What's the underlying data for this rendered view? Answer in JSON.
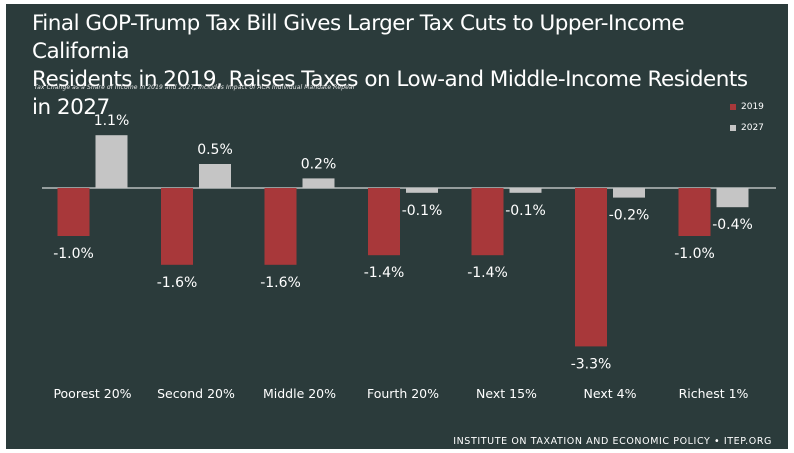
{
  "title_line1": "Final GOP-Trump Tax Bill Gives Larger Tax Cuts to Upper-Income California",
  "title_line2": "Residents in 2019, Raises Taxes on Low-and Middle-Income Residents in 2027",
  "subtitle": "Tax Change as a Share of Income in 2019 and 2027, Includes Impact of ACA Individual Mandate Repeal",
  "footer": "INSTITUTE ON TAXATION AND ECONOMIC POLICY • ITEP.ORG",
  "colors": {
    "background": "#2b3b3b",
    "s2019": "#a8383a",
    "s2027": "#c5c5c5"
  },
  "chart_data": {
    "type": "bar",
    "title": "Final GOP-Trump Tax Bill Gives Larger Tax Cuts to Upper-Income California Residents in 2019, Raises Taxes on Low-and Middle-Income Residents in 2027",
    "subtitle": "Tax Change as a Share of Income in 2019 and 2027, Includes Impact of ACA Individual Mandate Repeal",
    "categories": [
      "Poorest 20%",
      "Second 20%",
      "Middle 20%",
      "Fourth 20%",
      "Next 15%",
      "Next 4%",
      "Richest 1%"
    ],
    "series": [
      {
        "name": "2019",
        "values": [
          -1.0,
          -1.6,
          -1.6,
          -1.4,
          -1.4,
          -3.3,
          -1.0
        ],
        "labels": [
          "-1.0%",
          "-1.6%",
          "-1.6%",
          "-1.4%",
          "-1.4%",
          "-3.3%",
          "-1.0%"
        ]
      },
      {
        "name": "2027",
        "values": [
          1.1,
          0.5,
          0.2,
          -0.1,
          -0.1,
          -0.2,
          -0.4
        ],
        "labels": [
          "1.1%",
          "0.5%",
          "0.2%",
          "-0.1%",
          "-0.1%",
          "-0.2%",
          "-0.4%"
        ]
      }
    ],
    "xlabel": "",
    "ylabel": "",
    "ylim": [
      -3.3,
      1.1
    ],
    "grid": false,
    "legend": "top-right",
    "zero_line": true
  }
}
